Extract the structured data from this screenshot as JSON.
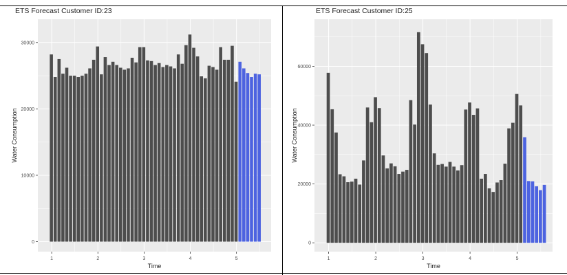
{
  "chart_data": [
    {
      "type": "bar",
      "title": "ETS Forecast Customer ID:23",
      "xlabel": "Time",
      "ylabel": "Water Consumption",
      "xlim": [
        0.7,
        5.75
      ],
      "ylim": [
        -1500,
        33500
      ],
      "x_ticks": [
        1,
        2,
        3,
        4,
        5
      ],
      "x_tick_labels": [
        "1",
        "2",
        "3",
        "4",
        "5"
      ],
      "y_ticks": [
        0,
        10000,
        20000,
        30000
      ],
      "y_tick_labels": [
        "0",
        "10000",
        "20000",
        "30000"
      ],
      "grid": true,
      "colors": {
        "panel": "#ebebeb",
        "grid": "#ffffff",
        "actual": "#4d4d4d",
        "forecast": "#4d63e0"
      },
      "series": [
        {
          "x_start": 1.0,
          "x_step": 0.0833,
          "values": [
            28200,
            24800,
            27500,
            25300,
            26200,
            25000,
            25000,
            24800,
            25000,
            25300,
            26100,
            27400,
            29400,
            25200,
            27800,
            26600,
            27100,
            26600,
            26200,
            25900,
            26100,
            27700,
            27000,
            29300,
            29300,
            27300,
            27200,
            26600,
            26900,
            26300,
            26600,
            26400,
            26100,
            28200,
            26800,
            29600,
            31200,
            29200,
            27900,
            24900,
            24600,
            26500,
            26300,
            25900,
            29300,
            27400,
            27400,
            29500,
            24100
          ]
        },
        {
          "x_start": 5.0833,
          "x_step": 0.0833,
          "values": [
            27100,
            26100,
            25400,
            24800,
            25300,
            25200
          ]
        }
      ]
    },
    {
      "type": "bar",
      "title": "ETS Forecast Customer ID:25",
      "xlabel": "Time",
      "ylabel": "Water Consumption",
      "xlim": [
        0.7,
        5.75
      ],
      "ylim": [
        -3000,
        76000
      ],
      "x_ticks": [
        1,
        2,
        3,
        4,
        5
      ],
      "x_tick_labels": [
        "1",
        "2",
        "3",
        "4",
        "5"
      ],
      "y_ticks": [
        0,
        20000,
        40000,
        60000
      ],
      "y_tick_labels": [
        "0",
        "20000",
        "40000",
        "60000"
      ],
      "grid": true,
      "colors": {
        "panel": "#ebebeb",
        "grid": "#ffffff",
        "actual": "#4d4d4d",
        "forecast": "#4d63e0"
      },
      "series": [
        {
          "x_start": 1.0,
          "x_step": 0.0833,
          "values": [
            57800,
            45400,
            37500,
            23300,
            22600,
            20600,
            20800,
            21800,
            19800,
            28000,
            46000,
            41000,
            49500,
            45800,
            29700,
            25300,
            27000,
            26000,
            23400,
            24200,
            24800,
            48500,
            40200,
            71600,
            67500,
            64500,
            47000,
            30400,
            26500,
            26800,
            25900,
            27500,
            25900,
            24600,
            26400,
            45300,
            47700,
            43500,
            45700,
            21800,
            23400,
            18500,
            17300,
            20500,
            21300,
            26900,
            38900,
            40800,
            50600,
            46700
          ]
        },
        {
          "x_start": 5.1667,
          "x_step": 0.0833,
          "values": [
            35900,
            21000,
            20900,
            19200,
            17900,
            19700
          ]
        }
      ]
    }
  ]
}
